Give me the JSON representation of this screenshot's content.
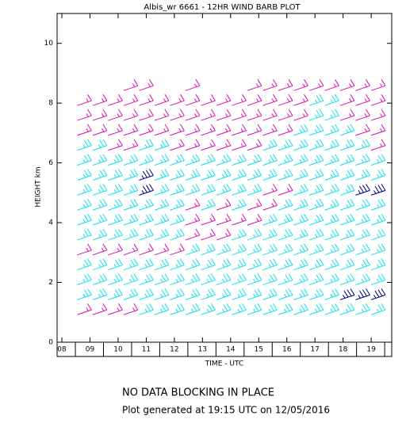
{
  "chart_data": {
    "type": "barb",
    "title": "Albis_wr 6661 - 12HR WIND BARB PLOT",
    "y_label": "HEIGHT km",
    "x_label": "TIME - UTC",
    "xlim": [
      7.83,
      19.73
    ],
    "ylim": [
      0,
      11
    ],
    "xticks": [
      {
        "value": 8,
        "label": "08"
      },
      {
        "value": 9,
        "label": "09"
      },
      10,
      11,
      12,
      13,
      14,
      15,
      16,
      17,
      18,
      19
    ],
    "yticks": [
      0,
      2,
      4,
      6,
      8,
      10
    ],
    "x": [
      8.8,
      9.35,
      9.9,
      10.45,
      11.0,
      11.55,
      12.1,
      12.65,
      13.2,
      13.75,
      14.3,
      14.85,
      15.4,
      15.95,
      16.5,
      17.05,
      17.6,
      18.15,
      18.7,
      19.25
    ],
    "levels": [
      1.0,
      1.5,
      2.0,
      2.5,
      3.0,
      3.5,
      4.0,
      4.5,
      5.0,
      5.5,
      6.0,
      6.5,
      7.0,
      7.5,
      8.0,
      8.5
    ],
    "color_bounds": [
      20,
      30
    ],
    "colors": [
      "#d810a8",
      "#10e0e8",
      "#000080"
    ],
    "values": [
      [
        15,
        25,
        25,
        25,
        15,
        25,
        25,
        25,
        25,
        25,
        25,
        25,
        15,
        15,
        15,
        null
      ],
      [
        15,
        25,
        25,
        25,
        15,
        25,
        25,
        25,
        25,
        25,
        25,
        25,
        15,
        15,
        15,
        null
      ],
      [
        15,
        25,
        25,
        25,
        15,
        25,
        25,
        25,
        25,
        25,
        25,
        15,
        15,
        15,
        15,
        null
      ],
      [
        15,
        25,
        25,
        25,
        15,
        25,
        25,
        25,
        25,
        25,
        25,
        15,
        15,
        15,
        15,
        15
      ],
      [
        25,
        25,
        25,
        25,
        15,
        25,
        25,
        25,
        35,
        35,
        25,
        25,
        15,
        15,
        15,
        15
      ],
      [
        25,
        25,
        25,
        25,
        15,
        25,
        25,
        25,
        25,
        25,
        25,
        25,
        15,
        15,
        15,
        null
      ],
      [
        25,
        25,
        25,
        25,
        15,
        25,
        25,
        25,
        25,
        25,
        25,
        15,
        15,
        15,
        15,
        null
      ],
      [
        25,
        25,
        25,
        25,
        25,
        15,
        15,
        15,
        25,
        25,
        25,
        15,
        15,
        15,
        15,
        15
      ],
      [
        25,
        25,
        25,
        25,
        25,
        15,
        15,
        25,
        25,
        25,
        25,
        15,
        15,
        15,
        15,
        null
      ],
      [
        25,
        25,
        25,
        25,
        25,
        15,
        15,
        15,
        25,
        25,
        25,
        15,
        15,
        15,
        15,
        null
      ],
      [
        25,
        25,
        25,
        25,
        25,
        25,
        15,
        25,
        25,
        25,
        25,
        15,
        15,
        15,
        15,
        null
      ],
      [
        25,
        25,
        25,
        25,
        25,
        25,
        15,
        15,
        25,
        25,
        25,
        15,
        15,
        15,
        15,
        15
      ],
      [
        25,
        25,
        25,
        25,
        25,
        25,
        25,
        15,
        15,
        25,
        25,
        25,
        15,
        15,
        15,
        15
      ],
      [
        25,
        25,
        25,
        25,
        25,
        25,
        25,
        25,
        15,
        25,
        25,
        25,
        15,
        15,
        15,
        15
      ],
      [
        25,
        25,
        25,
        25,
        25,
        25,
        25,
        25,
        25,
        25,
        25,
        25,
        25,
        15,
        15,
        15
      ],
      [
        25,
        25,
        25,
        25,
        25,
        25,
        25,
        25,
        25,
        25,
        25,
        25,
        25,
        25,
        25,
        15
      ],
      [
        25,
        25,
        25,
        25,
        25,
        25,
        25,
        25,
        25,
        25,
        25,
        25,
        25,
        25,
        25,
        15
      ],
      [
        25,
        35,
        25,
        25,
        25,
        25,
        25,
        25,
        25,
        25,
        25,
        25,
        25,
        15,
        15,
        15
      ],
      [
        25,
        35,
        25,
        25,
        25,
        25,
        25,
        25,
        35,
        25,
        25,
        25,
        15,
        15,
        15,
        15
      ],
      [
        25,
        35,
        25,
        25,
        25,
        25,
        25,
        25,
        35,
        25,
        25,
        15,
        15,
        15,
        15,
        15
      ]
    ]
  },
  "footer": {
    "status": "NO DATA BLOCKING IN PLACE",
    "generated": "Plot generated at 19:15 UTC on 12/05/2016"
  }
}
